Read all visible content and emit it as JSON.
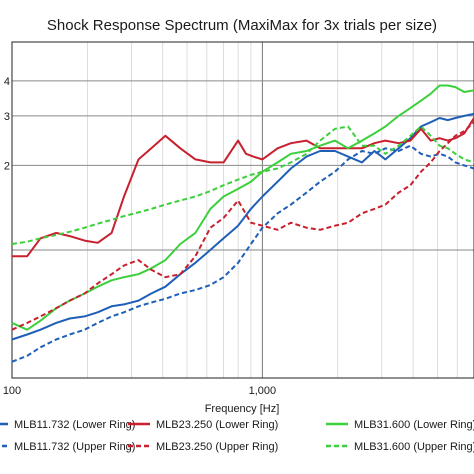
{
  "chart_data": {
    "type": "line",
    "title": "Shock Response Spectrum (MaxiMax for 3x trials per size)",
    "xlabel": "Frequency [Hz]",
    "ylabel": "",
    "x_scale": "log",
    "y_scale": "log",
    "xlim": [
      100,
      7000
    ],
    "ylim": [
      0.35,
      5.5
    ],
    "x_ticks": [
      {
        "value": 100,
        "label": "100"
      },
      {
        "value": 1000,
        "label": "1,000"
      }
    ],
    "y_ticks": [
      {
        "value": 1,
        "label": ""
      },
      {
        "value": 2,
        "label": "2"
      },
      {
        "value": 3,
        "label": "3"
      },
      {
        "value": 4,
        "label": "4"
      }
    ],
    "grid": true,
    "legend_position": "bottom",
    "series": [
      {
        "name": "MLB11.732 (Lower Ring)",
        "color": "#1f5fb8",
        "dash": "solid",
        "x": [
          100,
          115,
          130,
          150,
          170,
          195,
          220,
          250,
          280,
          320,
          360,
          410,
          470,
          540,
          620,
          700,
          800,
          900,
          1000,
          1150,
          1300,
          1500,
          1700,
          1950,
          2200,
          2500,
          2800,
          3100,
          3500,
          3900,
          4300,
          4700,
          5100,
          5500,
          5900,
          6400,
          7000
        ],
        "y": [
          0.48,
          0.5,
          0.52,
          0.55,
          0.57,
          0.58,
          0.6,
          0.63,
          0.64,
          0.66,
          0.7,
          0.74,
          0.82,
          0.9,
          1.0,
          1.1,
          1.22,
          1.4,
          1.55,
          1.75,
          1.95,
          2.15,
          2.25,
          2.25,
          2.15,
          2.05,
          2.25,
          2.1,
          2.3,
          2.5,
          2.75,
          2.85,
          2.95,
          2.9,
          2.95,
          3.0,
          3.05
        ]
      },
      {
        "name": "MLB23.250 (Lower Ring)",
        "color": "#c8202e",
        "dash": "solid",
        "x": [
          100,
          115,
          130,
          150,
          170,
          195,
          220,
          250,
          280,
          320,
          360,
          410,
          470,
          540,
          620,
          700,
          800,
          860,
          920,
          1000,
          1150,
          1300,
          1500,
          1700,
          1950,
          2200,
          2500,
          2800,
          3100,
          3500,
          3900,
          4300,
          4700,
          5100,
          5500,
          5900,
          6400,
          7000
        ],
        "y": [
          0.95,
          0.95,
          1.1,
          1.15,
          1.12,
          1.08,
          1.06,
          1.15,
          1.55,
          2.1,
          2.3,
          2.55,
          2.3,
          2.1,
          2.05,
          2.05,
          2.45,
          2.2,
          2.15,
          2.1,
          2.3,
          2.4,
          2.45,
          2.3,
          2.3,
          2.3,
          2.3,
          2.4,
          2.45,
          2.4,
          2.45,
          2.7,
          2.45,
          2.5,
          2.45,
          2.5,
          2.6,
          2.95
        ]
      },
      {
        "name": "MLB31.600 (Lower Ring)",
        "color": "#3ccf3c",
        "dash": "solid",
        "x": [
          100,
          115,
          130,
          150,
          170,
          195,
          220,
          250,
          280,
          320,
          360,
          410,
          470,
          540,
          620,
          700,
          800,
          900,
          1000,
          1150,
          1300,
          1500,
          1700,
          1950,
          2200,
          2500,
          2800,
          3100,
          3500,
          3900,
          4300,
          4700,
          5100,
          5500,
          5900,
          6400,
          7000
        ],
        "y": [
          0.55,
          0.52,
          0.56,
          0.62,
          0.66,
          0.7,
          0.74,
          0.78,
          0.8,
          0.82,
          0.86,
          0.92,
          1.05,
          1.15,
          1.4,
          1.55,
          1.65,
          1.75,
          1.9,
          2.05,
          2.2,
          2.25,
          2.35,
          2.45,
          2.3,
          2.45,
          2.6,
          2.75,
          3.0,
          3.2,
          3.4,
          3.6,
          3.85,
          3.85,
          3.8,
          3.65,
          3.7
        ]
      },
      {
        "name": "MLB11.732 (Upper Ring)",
        "color": "#1f5fb8",
        "dash": "dashed",
        "x": [
          100,
          115,
          130,
          150,
          170,
          195,
          220,
          250,
          280,
          320,
          360,
          410,
          470,
          540,
          620,
          700,
          800,
          900,
          1000,
          1150,
          1300,
          1500,
          1700,
          1950,
          2200,
          2500,
          2800,
          3100,
          3500,
          3900,
          4300,
          4700,
          5100,
          5500,
          5900,
          6400,
          7000
        ],
        "y": [
          0.4,
          0.42,
          0.45,
          0.48,
          0.5,
          0.52,
          0.55,
          0.58,
          0.6,
          0.63,
          0.65,
          0.67,
          0.7,
          0.72,
          0.75,
          0.8,
          0.9,
          1.05,
          1.2,
          1.35,
          1.45,
          1.6,
          1.75,
          1.9,
          2.1,
          2.25,
          2.2,
          2.3,
          2.25,
          2.35,
          2.2,
          2.15,
          2.2,
          2.15,
          2.05,
          2.0,
          1.95
        ]
      },
      {
        "name": "MLB23.250 (Upper Ring)",
        "color": "#c8202e",
        "dash": "dashed",
        "x": [
          100,
          115,
          130,
          150,
          170,
          195,
          220,
          250,
          280,
          320,
          360,
          410,
          470,
          540,
          620,
          700,
          800,
          900,
          1000,
          1150,
          1300,
          1500,
          1700,
          1950,
          2200,
          2500,
          2800,
          3100,
          3500,
          3900,
          4300,
          4700,
          5100,
          5500,
          5900,
          6400,
          7000
        ],
        "y": [
          0.52,
          0.55,
          0.58,
          0.62,
          0.66,
          0.7,
          0.76,
          0.82,
          0.88,
          0.92,
          0.85,
          0.8,
          0.82,
          0.95,
          1.2,
          1.3,
          1.5,
          1.25,
          1.22,
          1.18,
          1.25,
          1.2,
          1.18,
          1.22,
          1.25,
          1.35,
          1.4,
          1.45,
          1.6,
          1.7,
          1.9,
          2.05,
          2.25,
          2.4,
          2.55,
          2.65,
          2.85
        ]
      },
      {
        "name": "MLB31.600 (Upper Ring)",
        "color": "#3ccf3c",
        "dash": "dashed",
        "x": [
          100,
          115,
          130,
          150,
          170,
          195,
          220,
          250,
          280,
          320,
          360,
          410,
          470,
          540,
          620,
          700,
          800,
          900,
          1000,
          1150,
          1300,
          1500,
          1700,
          1950,
          2200,
          2500,
          2800,
          3100,
          3500,
          3900,
          4300,
          4700,
          5100,
          5500,
          5900,
          6400,
          7000
        ],
        "y": [
          1.05,
          1.07,
          1.1,
          1.13,
          1.16,
          1.2,
          1.24,
          1.28,
          1.32,
          1.36,
          1.4,
          1.45,
          1.5,
          1.55,
          1.62,
          1.7,
          1.78,
          1.85,
          1.9,
          1.95,
          2.05,
          2.2,
          2.45,
          2.7,
          2.75,
          2.35,
          2.35,
          2.2,
          2.35,
          2.55,
          2.75,
          2.55,
          2.35,
          2.3,
          2.2,
          2.1,
          2.05
        ]
      }
    ]
  }
}
